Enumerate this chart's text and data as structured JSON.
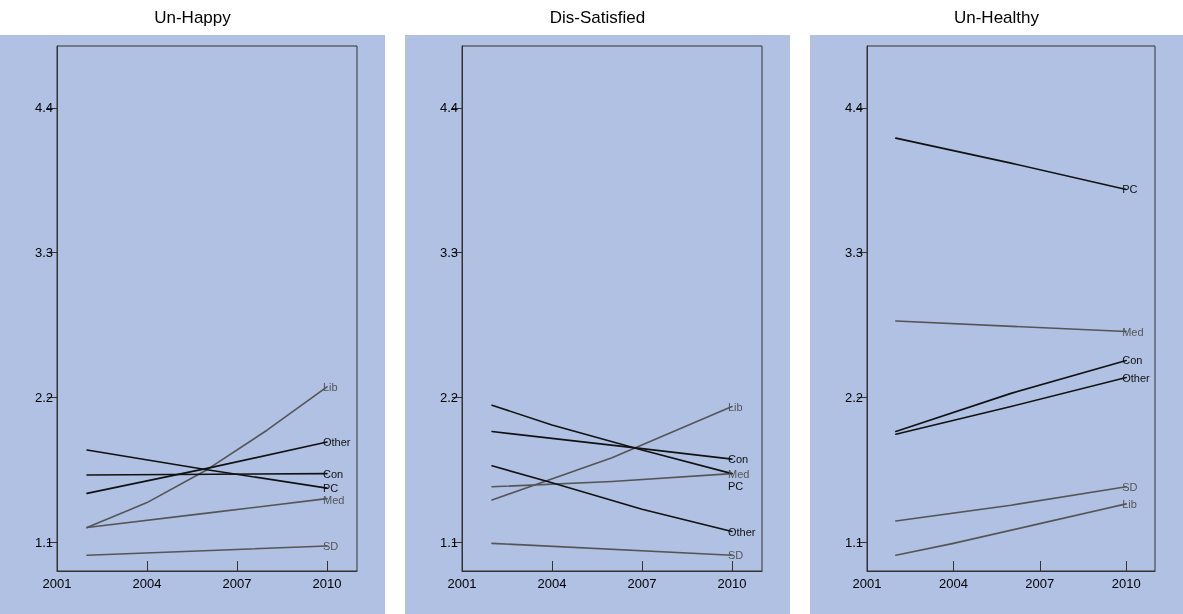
{
  "chart_data": [
    {
      "type": "line",
      "title": "Un-Happy",
      "xlim": [
        2001,
        2011
      ],
      "xticks": [
        2001,
        2004,
        2007,
        2010
      ],
      "ylim": [
        0.88,
        4.87
      ],
      "yticks": [
        1.1,
        2.2,
        3.3,
        4.4
      ],
      "grid": false,
      "legend": false,
      "marker": "none",
      "line_style": "solid",
      "series": [
        {
          "name": "Lib",
          "color": "#555555",
          "x": [
            2002,
            2004,
            2006,
            2008,
            2010
          ],
          "values": [
            1.21,
            1.4,
            1.65,
            1.95,
            2.28
          ]
        },
        {
          "name": "Other",
          "color": "#111111",
          "x": [
            2002,
            2006,
            2010
          ],
          "values": [
            1.47,
            1.66,
            1.86
          ]
        },
        {
          "name": "Con",
          "color": "#111111",
          "x": [
            2002,
            2010
          ],
          "values": [
            1.61,
            1.62
          ]
        },
        {
          "name": "PC",
          "color": "#111111",
          "x": [
            2002,
            2006,
            2010
          ],
          "values": [
            1.8,
            1.65,
            1.51
          ]
        },
        {
          "name": "Med",
          "color": "#555555",
          "x": [
            2002,
            2006,
            2010
          ],
          "values": [
            1.21,
            1.32,
            1.43
          ]
        },
        {
          "name": "SD",
          "color": "#555555",
          "x": [
            2002,
            2010
          ],
          "values": [
            1.0,
            1.07
          ]
        }
      ]
    },
    {
      "type": "line",
      "title": "Dis-Satisfied",
      "xlim": [
        2001,
        2011
      ],
      "xticks": [
        2001,
        2004,
        2007,
        2010
      ],
      "ylim": [
        0.88,
        4.87
      ],
      "yticks": [
        1.1,
        2.2,
        3.3,
        4.4
      ],
      "grid": false,
      "legend": false,
      "marker": "none",
      "line_style": "solid",
      "series": [
        {
          "name": "Lib",
          "color": "#555555",
          "x": [
            2002,
            2006,
            2010
          ],
          "values": [
            1.42,
            1.74,
            2.13
          ]
        },
        {
          "name": "Con",
          "color": "#111111",
          "x": [
            2002,
            2007,
            2010
          ],
          "values": [
            1.94,
            1.81,
            1.73
          ]
        },
        {
          "name": "Med",
          "color": "#555555",
          "x": [
            2002,
            2006,
            2010
          ],
          "values": [
            1.52,
            1.56,
            1.62
          ]
        },
        {
          "name": "PC",
          "color": "#111111",
          "x": [
            2002,
            2004,
            2007,
            2010
          ],
          "values": [
            2.14,
            1.99,
            1.8,
            1.62
          ]
        },
        {
          "name": "Other",
          "color": "#111111",
          "x": [
            2002,
            2004,
            2007,
            2010
          ],
          "values": [
            1.68,
            1.55,
            1.35,
            1.18
          ]
        },
        {
          "name": "SD",
          "color": "#555555",
          "x": [
            2002,
            2010
          ],
          "values": [
            1.09,
            1.0
          ]
        }
      ]
    },
    {
      "type": "line",
      "title": "Un-Healthy",
      "xlim": [
        2001,
        2011
      ],
      "xticks": [
        2001,
        2004,
        2007,
        2010
      ],
      "ylim": [
        0.88,
        4.87
      ],
      "yticks": [
        1.1,
        2.2,
        3.3,
        4.4
      ],
      "grid": false,
      "legend": false,
      "marker": "none",
      "line_style": "solid",
      "series": [
        {
          "name": "PC",
          "color": "#111111",
          "x": [
            2002,
            2006,
            2010
          ],
          "values": [
            4.17,
            3.98,
            3.78
          ]
        },
        {
          "name": "Med",
          "color": "#555555",
          "x": [
            2002,
            2010
          ],
          "values": [
            2.78,
            2.7
          ]
        },
        {
          "name": "Con",
          "color": "#111111",
          "x": [
            2002,
            2006,
            2010
          ],
          "values": [
            1.94,
            2.23,
            2.48
          ]
        },
        {
          "name": "Other",
          "color": "#111111",
          "x": [
            2002,
            2006,
            2010
          ],
          "values": [
            1.92,
            2.13,
            2.35
          ]
        },
        {
          "name": "SD",
          "color": "#555555",
          "x": [
            2002,
            2006,
            2010
          ],
          "values": [
            1.26,
            1.38,
            1.52
          ]
        },
        {
          "name": "Lib",
          "color": "#555555",
          "x": [
            2002,
            2004,
            2007,
            2010
          ],
          "values": [
            1.0,
            1.09,
            1.24,
            1.39
          ]
        }
      ]
    }
  ]
}
